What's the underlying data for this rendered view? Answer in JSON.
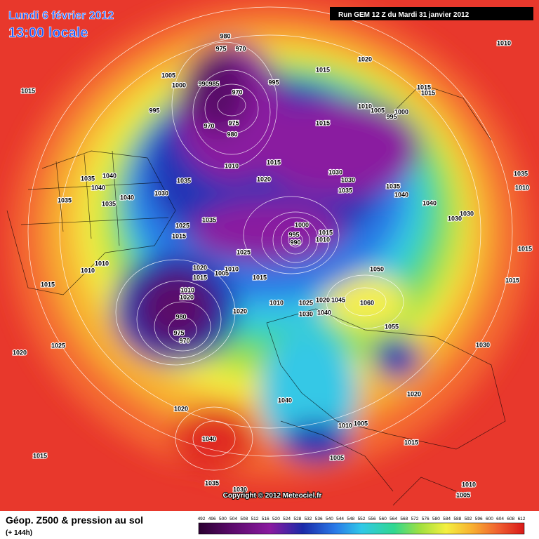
{
  "header": {
    "date": "Lundi 6 février 2012",
    "time": "13:00 locale",
    "run": "Run GEM 12 Z du Mardi 31 janvier 2012"
  },
  "isobar_labels": [
    1010,
    1015,
    1020,
    980,
    975,
    970,
    1005,
    1000,
    990,
    985,
    970,
    995,
    1015,
    1015,
    1015,
    995,
    970,
    975,
    980,
    1015,
    1010,
    1005,
    1000,
    995,
    1010,
    1015,
    1020,
    1030,
    1030,
    1035,
    1035,
    1040,
    1040,
    1030,
    1030,
    1035,
    1010,
    1040,
    1040,
    1035,
    1030,
    1035,
    1035,
    1035,
    1040,
    1035,
    1025,
    1015,
    1000,
    995,
    990,
    1015,
    1010,
    1025,
    1020,
    1015,
    1005,
    1010,
    1015,
    1010,
    1010,
    1015,
    1050,
    1010,
    1020,
    1010,
    1025,
    1020,
    1045,
    1060,
    1040,
    1030,
    1020,
    980,
    975,
    970,
    1055,
    1025,
    1020,
    1030,
    1040,
    1020,
    1020,
    1040,
    1010,
    1005,
    1015,
    1005,
    1015,
    1035,
    1030,
    1010,
    1005,
    1015,
    1015
  ],
  "copyright": "Copyright © 2012 Meteociel.fr",
  "footer": {
    "title": "Géop. Z500 & pression au sol",
    "lead": "(+ 144h)"
  },
  "scale": {
    "labels": [
      492,
      496,
      500,
      504,
      508,
      512,
      516,
      520,
      524,
      528,
      532,
      536,
      540,
      544,
      548,
      552,
      556,
      560,
      564,
      568,
      572,
      576,
      580,
      584,
      588,
      592,
      596,
      600,
      604,
      608,
      612
    ]
  }
}
